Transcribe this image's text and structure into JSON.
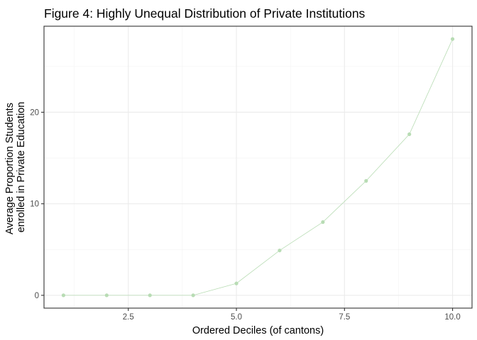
{
  "chart_data": {
    "type": "line",
    "title": "Figure 4: Highly Unequal Distribution of Private Institutions",
    "xlabel": "Ordered Deciles (of cantons)",
    "ylabel": [
      "Average Proportion Students",
      "enrolled in Private Education"
    ],
    "xlim": [
      0.55,
      10.45
    ],
    "ylim": [
      -1.4,
      29.4
    ],
    "x_ticks": [
      2.5,
      5.0,
      7.5,
      10.0
    ],
    "x_tick_labels": [
      "2.5",
      "5.0",
      "7.5",
      "10.0"
    ],
    "y_ticks": [
      0,
      10,
      20
    ],
    "y_tick_labels": [
      "0",
      "10",
      "20"
    ],
    "grid": true,
    "legend": "none",
    "series": [
      {
        "x": [
          1,
          2,
          3,
          4,
          5,
          6,
          7,
          8,
          9,
          10
        ],
        "y": [
          0,
          0,
          0,
          0,
          1.3,
          4.9,
          8.0,
          12.5,
          17.6,
          28.0
        ],
        "color": "#b8dcb4"
      }
    ]
  }
}
